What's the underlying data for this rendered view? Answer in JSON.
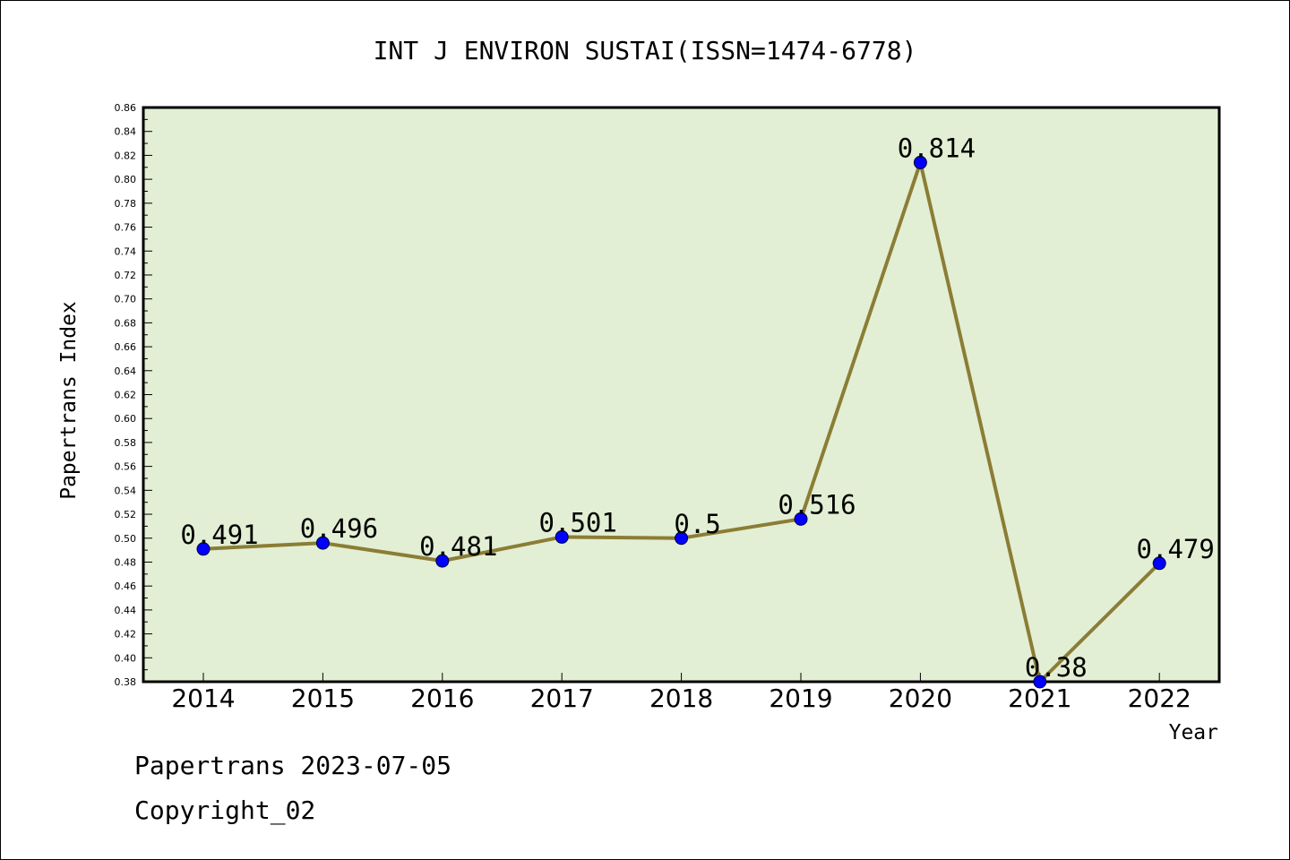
{
  "chart_data": {
    "type": "line",
    "title": "INT J ENVIRON SUSTAI(ISSN=1474-6778)",
    "xlabel": "Year",
    "ylabel": "Papertrans Index",
    "categories": [
      "2014",
      "2015",
      "2016",
      "2017",
      "2018",
      "2019",
      "2020",
      "2021",
      "2022"
    ],
    "values": [
      0.491,
      0.496,
      0.481,
      0.501,
      0.5,
      0.516,
      0.814,
      0.38,
      0.479
    ],
    "data_labels": [
      "0.491",
      "0.496",
      "0.481",
      "0.501",
      "0.5",
      "0.516",
      "0.814",
      "0.38",
      "0.479"
    ],
    "ylim": [
      0.38,
      0.86
    ],
    "yticks": [
      "0.38",
      "0.40",
      "0.42",
      "0.44",
      "0.46",
      "0.48",
      "0.50",
      "0.52",
      "0.54",
      "0.56",
      "0.58",
      "0.60",
      "0.62",
      "0.64",
      "0.66",
      "0.68",
      "0.70",
      "0.72",
      "0.74",
      "0.76",
      "0.78",
      "0.80",
      "0.82",
      "0.84",
      "0.86"
    ],
    "grid": false,
    "colors": {
      "plot_background": "#e2efd4",
      "line": "#8b7d35",
      "marker": "#0000ff"
    }
  },
  "footer": {
    "line1": "Papertrans 2023-07-05",
    "line2": "Copyright_02"
  }
}
